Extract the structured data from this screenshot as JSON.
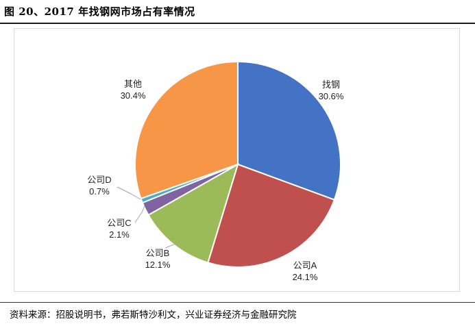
{
  "figure": {
    "title": "图 20、2017 年找钢网市场占有率情况",
    "source": "资料来源：招股说明书，弗若斯特沙利文，兴业证券经济与金融研究院"
  },
  "chart_data": {
    "type": "pie",
    "title": "",
    "slices": [
      {
        "label": "找钢",
        "value": 30.6,
        "value_label": "30.6%",
        "color": "#4472C4"
      },
      {
        "label": "公司A",
        "value": 24.1,
        "value_label": "24.1%",
        "color": "#C0504D"
      },
      {
        "label": "公司B",
        "value": 12.1,
        "value_label": "12.1%",
        "color": "#9BBB59"
      },
      {
        "label": "公司C",
        "value": 2.1,
        "value_label": "2.1%",
        "color": "#8064A2"
      },
      {
        "label": "公司D",
        "value": 0.7,
        "value_label": "0.7%",
        "color": "#4BACC6"
      },
      {
        "label": "其他",
        "value": 30.4,
        "value_label": "30.4%",
        "color": "#F79646"
      }
    ],
    "start_angle": "12 o'clock",
    "direction": "clockwise",
    "legend": "none",
    "data_labels": "outside with leader lines for small slices"
  }
}
